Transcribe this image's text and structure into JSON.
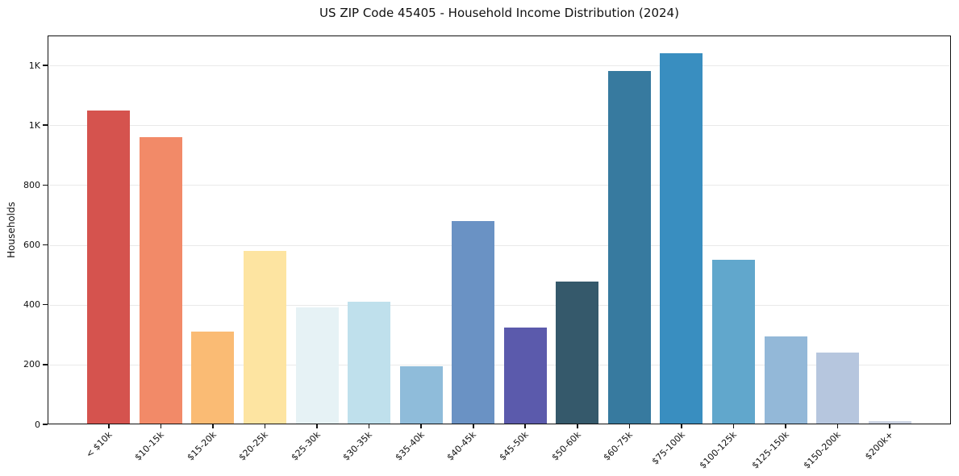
{
  "chart_data": {
    "type": "bar",
    "title": "US ZIP Code 45405 - Household Income Distribution (2024)",
    "xlabel": "",
    "ylabel": "Households",
    "categories": [
      "< $10k",
      "$10-15k",
      "$15-20k",
      "$20-25k",
      "$25-30k",
      "$30-35k",
      "$35-40k",
      "$40-45k",
      "$45-50k",
      "$50-60k",
      "$60-75k",
      "$75-100k",
      "$100-125k",
      "$125-150k",
      "$150-200k",
      "$200k+"
    ],
    "values": [
      1050,
      960,
      310,
      580,
      390,
      410,
      195,
      680,
      325,
      477,
      1180,
      1240,
      550,
      293,
      240,
      10
    ],
    "bar_colors": [
      "#d5534e",
      "#f28a68",
      "#fabb74",
      "#fde4a1",
      "#e6f2f5",
      "#bfe0ec",
      "#8fbcda",
      "#6a92c4",
      "#5b5aac",
      "#35596b",
      "#377a9f",
      "#398ec0",
      "#61a7cc",
      "#93b8d8",
      "#b6c6de",
      "#ccd3e2"
    ],
    "ylim": [
      0,
      1300
    ],
    "ytick_values": [
      0,
      200,
      400,
      600,
      800,
      1000,
      1200
    ],
    "ytick_labels": [
      "0",
      "200",
      "400",
      "600",
      "800",
      "1K",
      "1K"
    ],
    "grid": "horizontal",
    "grid_color": "#e9e9e9",
    "legend": "none",
    "spine_color": "#111111",
    "background_color": "#ffffff"
  }
}
